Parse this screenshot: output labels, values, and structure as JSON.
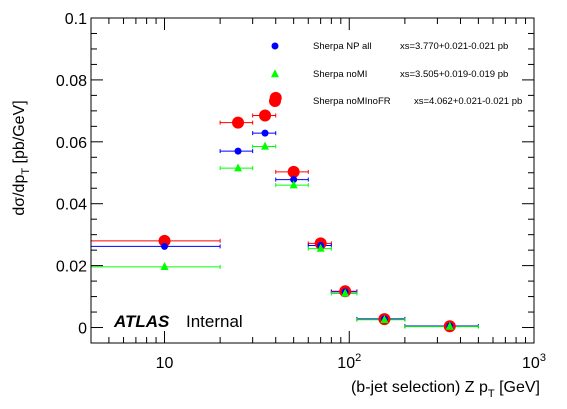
{
  "chart_data": {
    "type": "scatter",
    "title": "",
    "xlabel": "(b-jet selection) Z p_T [GeV]",
    "xlabel_parts": {
      "prefix": "(b-jet selection) Z p",
      "sub": "T",
      "suffix": " [GeV]"
    },
    "ylabel": "dσ/dp_T [pb/GeV]",
    "ylabel_parts": {
      "prefix": "dσ/dp",
      "sub": "T",
      "suffix": " [pb/GeV]"
    },
    "xscale": "log",
    "xlim": [
      4,
      1000
    ],
    "ylim": [
      -0.005,
      0.1
    ],
    "x_ticks": [
      {
        "value": 10,
        "label": "10"
      },
      {
        "value": 100,
        "label": "10",
        "sup": "2"
      },
      {
        "value": 1000,
        "label": "10",
        "sup": "3"
      }
    ],
    "y_ticks": [
      {
        "value": 0,
        "label": "0"
      },
      {
        "value": 0.02,
        "label": "0.02"
      },
      {
        "value": 0.04,
        "label": "0.04"
      },
      {
        "value": 0.06,
        "label": "0.06"
      },
      {
        "value": 0.08,
        "label": "0.08"
      },
      {
        "value": 0.1,
        "label": "0.1"
      }
    ],
    "grid": false,
    "legend_position": "top-right",
    "series": [
      {
        "name": "Sherpa NP all",
        "xs_label": "xs=3.770+0.021-0.021 pb",
        "color": "#0000ff",
        "marker": "circle",
        "points": [
          {
            "x": 10,
            "xlo": 3,
            "xhi": 20,
            "y": 0.0262
          },
          {
            "x": 25,
            "xlo": 20,
            "xhi": 30,
            "y": 0.057
          },
          {
            "x": 35,
            "xlo": 30,
            "xhi": 40,
            "y": 0.0628
          },
          {
            "x": 50,
            "xlo": 40,
            "xhi": 60,
            "y": 0.0478
          },
          {
            "x": 70,
            "xlo": 60,
            "xhi": 80,
            "y": 0.0265
          },
          {
            "x": 95,
            "xlo": 80,
            "xhi": 110,
            "y": 0.0115
          },
          {
            "x": 155,
            "xlo": 110,
            "xhi": 200,
            "y": 0.0028
          },
          {
            "x": 350,
            "xlo": 200,
            "xhi": 500,
            "y": 0.0005
          }
        ]
      },
      {
        "name": "Sherpa noMI",
        "xs_label": "xs=3.505+0.019-0.019 pb",
        "color": "#00ff00",
        "marker": "triangle",
        "points": [
          {
            "x": 10,
            "xlo": 3,
            "xhi": 20,
            "y": 0.0196
          },
          {
            "x": 25,
            "xlo": 20,
            "xhi": 30,
            "y": 0.0515
          },
          {
            "x": 35,
            "xlo": 30,
            "xhi": 40,
            "y": 0.0585
          },
          {
            "x": 50,
            "xlo": 40,
            "xhi": 60,
            "y": 0.046
          },
          {
            "x": 70,
            "xlo": 60,
            "xhi": 80,
            "y": 0.0255
          },
          {
            "x": 95,
            "xlo": 80,
            "xhi": 110,
            "y": 0.011
          },
          {
            "x": 155,
            "xlo": 110,
            "xhi": 200,
            "y": 0.0025
          },
          {
            "x": 350,
            "xlo": 200,
            "xhi": 500,
            "y": 0.0003
          }
        ]
      },
      {
        "name": "Sherpa noMInoFR",
        "xs_label": "xs=4.062+0.021-0.021 pb",
        "color": "#ff0000",
        "marker": "circle-large",
        "points": [
          {
            "x": 10,
            "xlo": 3,
            "xhi": 20,
            "y": 0.028
          },
          {
            "x": 25,
            "xlo": 20,
            "xhi": 30,
            "y": 0.0662
          },
          {
            "x": 35,
            "xlo": 30,
            "xhi": 40,
            "y": 0.0685
          },
          {
            "x": 40,
            "xlo": null,
            "xhi": null,
            "y": 0.0742
          },
          {
            "x": 50,
            "xlo": 40,
            "xhi": 60,
            "y": 0.0503
          },
          {
            "x": 70,
            "xlo": 60,
            "xhi": 80,
            "y": 0.0272
          },
          {
            "x": 95,
            "xlo": 80,
            "xhi": 110,
            "y": 0.0117
          },
          {
            "x": 155,
            "xlo": 110,
            "xhi": 200,
            "y": 0.0027
          },
          {
            "x": 350,
            "xlo": 200,
            "xhi": 500,
            "y": 0.0004
          }
        ]
      }
    ]
  },
  "labels": {
    "atlas": "ATLAS",
    "internal": "Internal"
  }
}
